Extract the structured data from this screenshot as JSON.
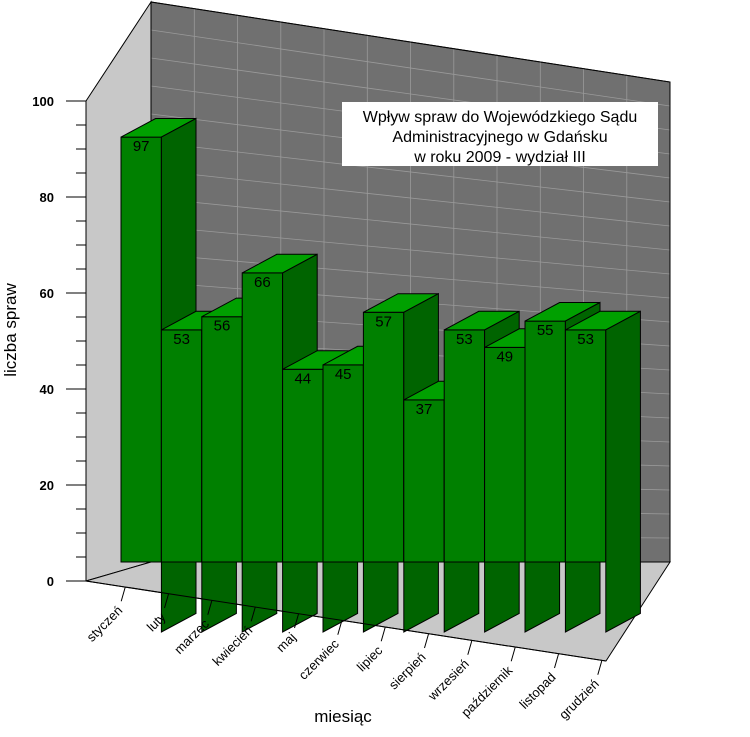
{
  "chart_data": {
    "type": "bar",
    "title_lines": [
      "Wpływ spraw do Wojewódzkiego Sądu",
      "Administracyjnego w Gdańsku",
      "w roku 2009 - wydział III"
    ],
    "xlabel": "miesiąc",
    "ylabel": "liczba spraw",
    "ylim": [
      0,
      100
    ],
    "yticks": [
      0,
      20,
      40,
      60,
      80,
      100
    ],
    "categories": [
      "styczeń",
      "luty",
      "marzec",
      "kwiecień",
      "maj",
      "czerwiec",
      "lipiec",
      "sierpień",
      "wrzesień",
      "październik",
      "listopad",
      "grudzień"
    ],
    "values": [
      97,
      53,
      56,
      66,
      44,
      45,
      57,
      37,
      53,
      49,
      55,
      53
    ],
    "grid": true,
    "style": "3d",
    "colors": {
      "bar_front": "#008000",
      "bar_side": "#006400",
      "bar_top": "#00a000",
      "back_wall": "#707070",
      "side_wall": "#c8c8c8",
      "floor": "#c8c8c8",
      "grid": "#9a9a9a"
    }
  }
}
